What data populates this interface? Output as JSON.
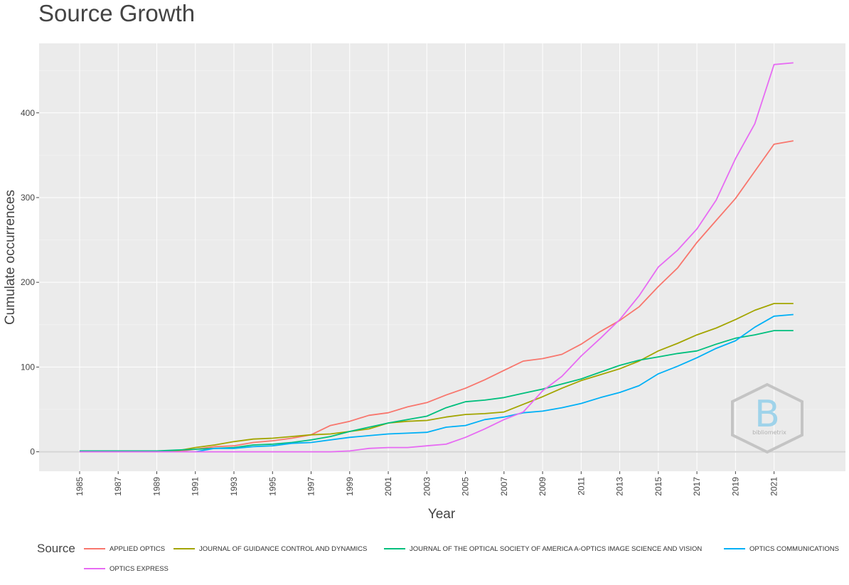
{
  "title": "Source Growth",
  "chart_data": {
    "type": "line",
    "title": "Source Growth",
    "xlabel": "Year",
    "ylabel": "Cumulate occurrences",
    "xlim": [
      1982.9,
      2024.7
    ],
    "ylim": [
      -23,
      482
    ],
    "x_ticks": [
      "1985",
      "1987",
      "1989",
      "1991",
      "1993",
      "1995",
      "1997",
      "1999",
      "2001",
      "2003",
      "2005",
      "2007",
      "2009",
      "2011",
      "2013",
      "2015",
      "2017",
      "2019",
      "2021"
    ],
    "y_ticks": [
      "0",
      "100",
      "200",
      "300",
      "400"
    ],
    "grid": true,
    "legend_title": "Source",
    "legend_position": "bottom",
    "x": [
      1985,
      1986,
      1987,
      1988,
      1989,
      1990,
      1991,
      1992,
      1993,
      1994,
      1995,
      1996,
      1997,
      1998,
      1999,
      2000,
      2001,
      2002,
      2003,
      2004,
      2005,
      2006,
      2007,
      2008,
      2009,
      2010,
      2011,
      2012,
      2013,
      2014,
      2015,
      2016,
      2017,
      2018,
      2019,
      2020,
      2021,
      2022
    ],
    "series": [
      {
        "name": "APPLIED OPTICS",
        "color": "#F8766D",
        "values": [
          0,
          0,
          0,
          0,
          0,
          0,
          3,
          6,
          7,
          11,
          13,
          16,
          20,
          31,
          36,
          43,
          46,
          53,
          58,
          67,
          75,
          85,
          96,
          107,
          110,
          115,
          127,
          142,
          155,
          171,
          195,
          217,
          247,
          273,
          299,
          331,
          363,
          367
        ]
      },
      {
        "name": "JOURNAL OF GUIDANCE CONTROL AND DYNAMICS",
        "color": "#A3A500",
        "values": [
          0,
          0,
          0,
          0,
          0,
          1,
          5,
          8,
          12,
          15,
          16,
          18,
          20,
          21,
          24,
          27,
          34,
          36,
          37,
          41,
          44,
          45,
          47,
          56,
          65,
          75,
          84,
          91,
          98,
          107,
          119,
          128,
          138,
          146,
          156,
          167,
          175,
          175
        ]
      },
      {
        "name": "JOURNAL OF THE OPTICAL SOCIETY OF AMERICA A-OPTICS IMAGE SCIENCE AND VISION",
        "color": "#00BF7D",
        "values": [
          1,
          1,
          1,
          1,
          1,
          2,
          3,
          4,
          5,
          8,
          9,
          11,
          14,
          18,
          24,
          29,
          34,
          38,
          42,
          52,
          59,
          61,
          64,
          69,
          74,
          80,
          86,
          94,
          102,
          108,
          112,
          116,
          119,
          127,
          134,
          138,
          143,
          143
        ]
      },
      {
        "name": "OPTICS COMMUNICATIONS",
        "color": "#00B0F6",
        "values": [
          0,
          0,
          0,
          0,
          0,
          0,
          0,
          4,
          4,
          6,
          7,
          10,
          11,
          14,
          17,
          19,
          21,
          22,
          23,
          29,
          31,
          38,
          41,
          46,
          48,
          52,
          57,
          64,
          70,
          78,
          92,
          101,
          111,
          122,
          131,
          147,
          160,
          162
        ]
      },
      {
        "name": "OPTICS EXPRESS",
        "color": "#E76BF3",
        "values": [
          0,
          0,
          0,
          0,
          0,
          0,
          0,
          0,
          0,
          0,
          0,
          0,
          0,
          0,
          1,
          4,
          5,
          5,
          7,
          9,
          17,
          27,
          38,
          47,
          72,
          89,
          113,
          134,
          156,
          184,
          218,
          238,
          263,
          297,
          346,
          387,
          457,
          459
        ]
      }
    ]
  },
  "logo": {
    "text": "bibliometrix",
    "letter": "B"
  }
}
